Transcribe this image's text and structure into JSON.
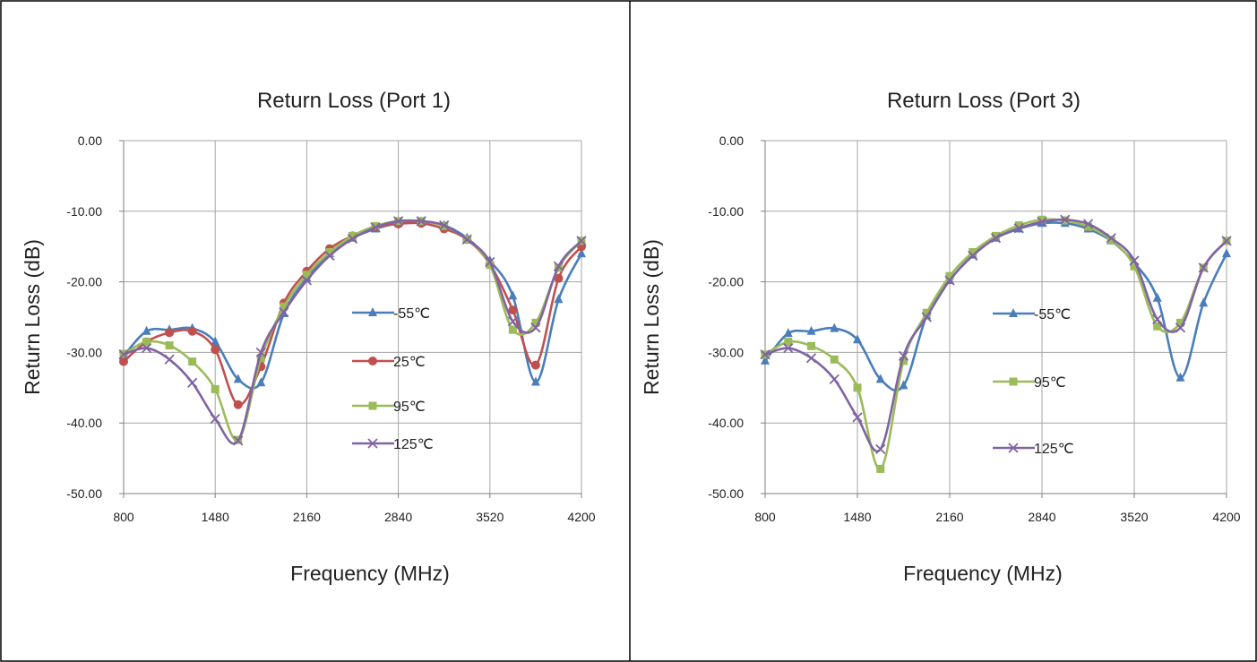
{
  "chart_data": [
    {
      "type": "line",
      "title": "Return Loss (Port 1)",
      "xlabel": "Frequency (MHz)",
      "ylabel": "Return Loss (dB)",
      "xlim": [
        800,
        4200
      ],
      "ylim": [
        -50,
        0
      ],
      "x_ticks": [
        "800",
        "1480",
        "2160",
        "2840",
        "3520",
        "4200"
      ],
      "y_ticks": [
        "0.00",
        "-10.00",
        "-20.00",
        "-30.00",
        "-40.00",
        "-50.00"
      ],
      "grid": true,
      "legend_position": "right",
      "x": [
        800,
        970,
        1140,
        1310,
        1480,
        1650,
        1820,
        1990,
        2160,
        2330,
        2500,
        2670,
        2840,
        3010,
        3180,
        3350,
        3520,
        3690,
        3860,
        4030,
        4200
      ],
      "series": [
        {
          "name": "-55℃",
          "color": "#4a7ebb",
          "marker": "triangle",
          "values": [
            -30.5,
            -27.0,
            -26.8,
            -26.6,
            -28.5,
            -33.8,
            -34.3,
            -24.5,
            -19.5,
            -16.0,
            -13.8,
            -12.5,
            -11.7,
            -11.5,
            -12.0,
            -13.8,
            -17.0,
            -22.0,
            -34.2,
            -22.5,
            -16.0
          ]
        },
        {
          "name": "25℃",
          "color": "#c0504d",
          "marker": "circle",
          "values": [
            -31.3,
            -28.5,
            -27.2,
            -27.0,
            -29.6,
            -37.4,
            -32.0,
            -23.0,
            -18.5,
            -15.3,
            -13.5,
            -12.3,
            -11.8,
            -11.7,
            -12.5,
            -14.0,
            -17.5,
            -24.0,
            -31.8,
            -19.5,
            -15.0
          ]
        },
        {
          "name": "95℃",
          "color": "#9bbb59",
          "marker": "square",
          "values": [
            -30.2,
            -28.5,
            -29.0,
            -31.3,
            -35.2,
            -42.4,
            -30.8,
            -23.5,
            -19.0,
            -15.8,
            -13.5,
            -12.1,
            -11.4,
            -11.4,
            -12.1,
            -14.0,
            -17.6,
            -26.8,
            -25.8,
            -18.0,
            -14.2
          ]
        },
        {
          "name": "125℃",
          "color": "#8064a2",
          "marker": "x",
          "values": [
            -30.3,
            -29.4,
            -31.0,
            -34.3,
            -39.4,
            -42.5,
            -30.0,
            -24.3,
            -19.8,
            -16.3,
            -13.9,
            -12.3,
            -11.4,
            -11.4,
            -12.0,
            -14.0,
            -17.2,
            -25.6,
            -26.5,
            -17.8,
            -14.2
          ]
        }
      ]
    },
    {
      "type": "line",
      "title": "Return Loss (Port 3)",
      "xlabel": "Frequency (MHz)",
      "ylabel": "Return Loss (dB)",
      "xlim": [
        800,
        4200
      ],
      "ylim": [
        -50,
        0
      ],
      "x_ticks": [
        "800",
        "1480",
        "2160",
        "2840",
        "3520",
        "4200"
      ],
      "y_ticks": [
        "0.00",
        "-10.00",
        "-20.00",
        "-30.00",
        "-40.00",
        "-50.00"
      ],
      "grid": true,
      "legend_position": "right",
      "x": [
        800,
        970,
        1140,
        1310,
        1480,
        1650,
        1820,
        1990,
        2160,
        2330,
        2500,
        2670,
        2840,
        3010,
        3180,
        3350,
        3520,
        3690,
        3860,
        4030,
        4200
      ],
      "series": [
        {
          "name": "-55℃",
          "color": "#4a7ebb",
          "marker": "triangle",
          "values": [
            -31.2,
            -27.3,
            -27.0,
            -26.6,
            -28.2,
            -33.8,
            -34.7,
            -24.8,
            -19.8,
            -16.2,
            -13.8,
            -12.5,
            -11.7,
            -11.7,
            -12.5,
            -14.2,
            -17.3,
            -22.3,
            -33.6,
            -23.0,
            -16.0
          ]
        },
        {
          "name": "95℃",
          "color": "#9bbb59",
          "marker": "square",
          "values": [
            -30.3,
            -28.5,
            -29.1,
            -31.0,
            -35.0,
            -46.5,
            -31.2,
            -24.4,
            -19.2,
            -15.8,
            -13.5,
            -12.0,
            -11.2,
            -11.3,
            -12.2,
            -14.1,
            -17.8,
            -26.3,
            -25.8,
            -18.0,
            -14.2
          ]
        },
        {
          "name": "125℃",
          "color": "#8064a2",
          "marker": "x",
          "values": [
            -30.3,
            -29.4,
            -30.8,
            -33.8,
            -39.2,
            -43.7,
            -30.5,
            -25.0,
            -19.8,
            -16.3,
            -13.8,
            -12.4,
            -11.5,
            -11.2,
            -11.8,
            -13.8,
            -17.0,
            -25.3,
            -26.5,
            -18.0,
            -14.2
          ]
        }
      ]
    }
  ]
}
